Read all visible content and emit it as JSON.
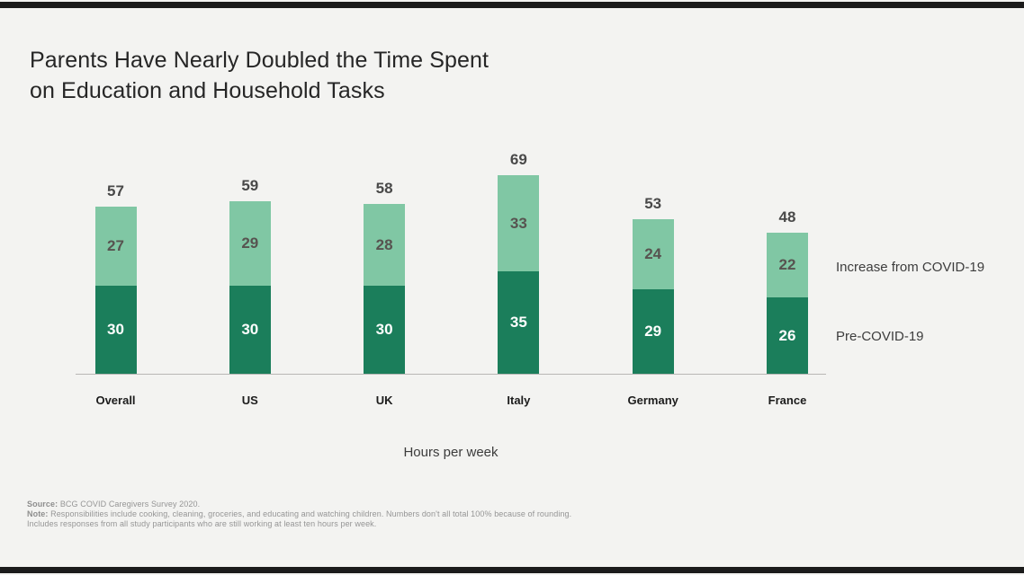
{
  "title": {
    "line1": "Parents Have Nearly Doubled the Time Spent",
    "line2": "on Education and Household Tasks"
  },
  "chart_data": {
    "type": "bar",
    "subtype": "stacked",
    "categories": [
      "Overall",
      "US",
      "UK",
      "Italy",
      "Germany",
      "France"
    ],
    "series": [
      {
        "name": "Pre-COVID-19",
        "color": "#1b7e5b",
        "values": [
          30,
          30,
          30,
          35,
          29,
          26
        ]
      },
      {
        "name": "Increase from COVID-19",
        "color": "#80c7a4",
        "values": [
          27,
          29,
          28,
          33,
          24,
          22
        ]
      }
    ],
    "totals": [
      57,
      59,
      58,
      69,
      53,
      48
    ],
    "title": "Parents Have Nearly Doubled the Time Spent on Education and Household Tasks",
    "xlabel": "Hours per week",
    "ylabel": "",
    "ylim": [
      0,
      69
    ],
    "grid": false,
    "legend_position": "right-of-last-bar",
    "value_labels": "inside-segments-and-total-above"
  },
  "footer": {
    "source_label": "Source:",
    "source_text": " BCG COVID Caregivers Survey 2020.",
    "note_label": "Note:",
    "note_text": " Responsibilities include cooking, cleaning, groceries, and educating and watching children. Numbers don't all total 100% because of rounding.",
    "note_text2": "Includes responses from all study participants who are still working at least ten hours per week."
  }
}
